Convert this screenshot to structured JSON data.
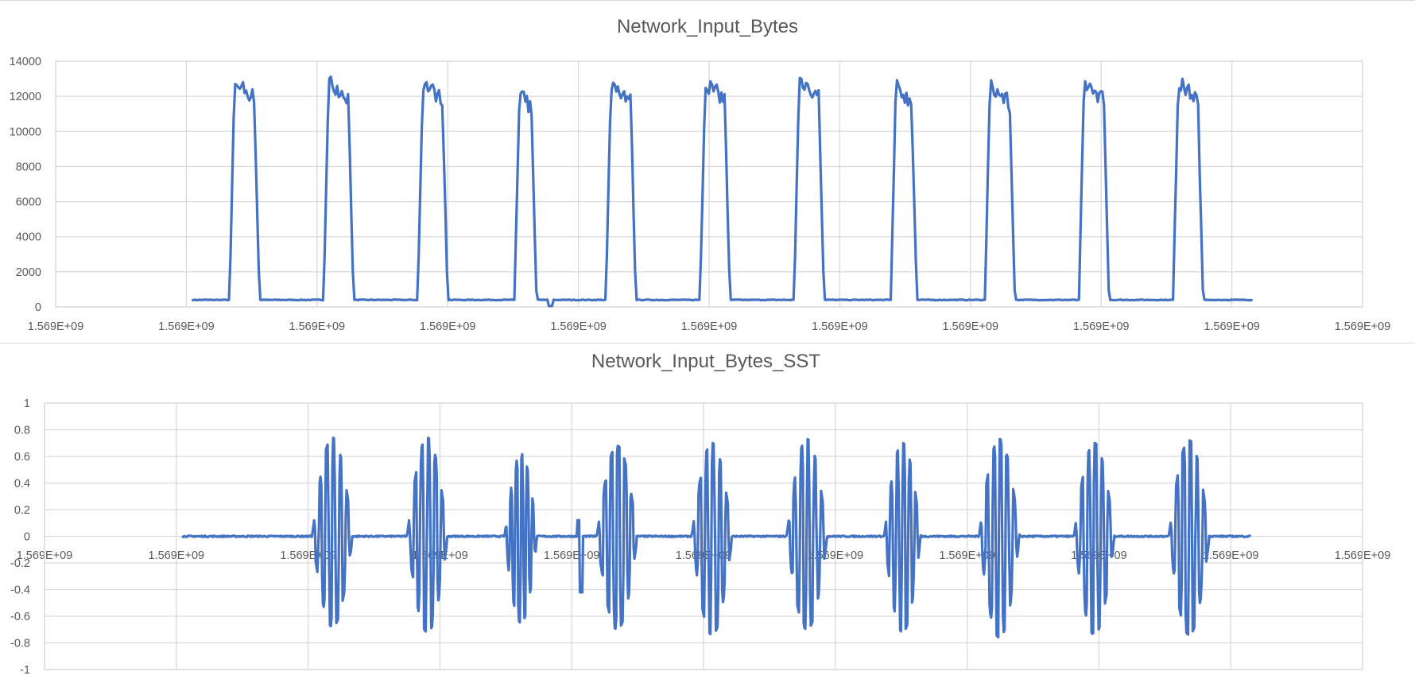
{
  "colors": {
    "series": "#4472c4",
    "grid": "#d9d9d9",
    "text": "#595959",
    "background": "#ffffff"
  },
  "chart_data": [
    {
      "type": "line",
      "title": "Network_Input_Bytes",
      "xlabel": "",
      "ylabel": "",
      "ylim": [
        0,
        14000
      ],
      "y_ticks": [
        0,
        2000,
        4000,
        6000,
        8000,
        10000,
        12000,
        14000
      ],
      "x_tick_labels": [
        "1.569E+09",
        "1.569E+09",
        "1.569E+09",
        "1.569E+09",
        "1.569E+09",
        "1.569E+09",
        "1.569E+09",
        "1.569E+09",
        "1.569E+09",
        "1.569E+09",
        "1.569E+09"
      ],
      "grid": true,
      "legend": "none",
      "series": [
        {
          "baseline_value": 400,
          "x_range": [
            1.05,
            9.15
          ],
          "bursts": [
            {
              "start": 1.35,
              "end": 1.54,
              "peak": 13000
            },
            {
              "start": 2.07,
              "end": 2.26,
              "peak": 13000
            },
            {
              "start": 2.79,
              "end": 2.98,
              "peak": 12900
            },
            {
              "start": 3.53,
              "end": 3.66,
              "peak": 12300
            },
            {
              "start": 4.23,
              "end": 4.42,
              "peak": 12900
            },
            {
              "start": 4.95,
              "end": 5.14,
              "peak": 12900
            },
            {
              "start": 5.67,
              "end": 5.86,
              "peak": 13100
            },
            {
              "start": 6.41,
              "end": 6.57,
              "peak": 12700
            },
            {
              "start": 7.13,
              "end": 7.32,
              "peak": 12700
            },
            {
              "start": 7.85,
              "end": 8.04,
              "peak": 12900
            },
            {
              "start": 8.57,
              "end": 8.76,
              "peak": 12900
            }
          ],
          "dip": {
            "x": 3.79,
            "value": 50
          }
        }
      ]
    },
    {
      "type": "line",
      "title": "Network_Input_Bytes_SST",
      "xlabel": "",
      "ylabel": "",
      "ylim": [
        -1,
        1
      ],
      "y_ticks": [
        -1,
        -0.8,
        -0.6,
        -0.4,
        -0.2,
        0,
        0.2,
        0.4,
        0.6,
        0.8,
        1
      ],
      "x_tick_labels": [
        "1.569E+09",
        "1.569E+09",
        "1.569E+09",
        "1.569E+09",
        "1.569E+09",
        "1.569E+09",
        "1.569E+09",
        "1.569E+09",
        "1.569E+09",
        "1.569E+09",
        "1.569E+09"
      ],
      "grid": true,
      "legend": "none",
      "series": [
        {
          "baseline_value": 0,
          "x_range": [
            1.05,
            9.15
          ],
          "bursts": [
            {
              "start": 2.07,
              "end": 2.26,
              "max": 0.74,
              "min": -0.68
            },
            {
              "start": 2.79,
              "end": 2.98,
              "max": 0.74,
              "min": -0.72
            },
            {
              "start": 3.53,
              "end": 3.66,
              "max": 0.62,
              "min": -0.65
            },
            {
              "start": 4.23,
              "end": 4.42,
              "max": 0.68,
              "min": -0.7
            },
            {
              "start": 4.95,
              "end": 5.14,
              "max": 0.7,
              "min": -0.74
            },
            {
              "start": 5.67,
              "end": 5.86,
              "max": 0.73,
              "min": -0.7
            },
            {
              "start": 6.41,
              "end": 6.57,
              "max": 0.7,
              "min": -0.72
            },
            {
              "start": 7.13,
              "end": 7.32,
              "max": 0.73,
              "min": -0.76
            },
            {
              "start": 7.85,
              "end": 8.04,
              "max": 0.7,
              "min": -0.74
            },
            {
              "start": 8.57,
              "end": 8.76,
              "max": 0.72,
              "min": -0.74
            }
          ],
          "small_spike": {
            "x": 4.07,
            "max": 0.12,
            "min": -0.42
          }
        }
      ]
    }
  ]
}
